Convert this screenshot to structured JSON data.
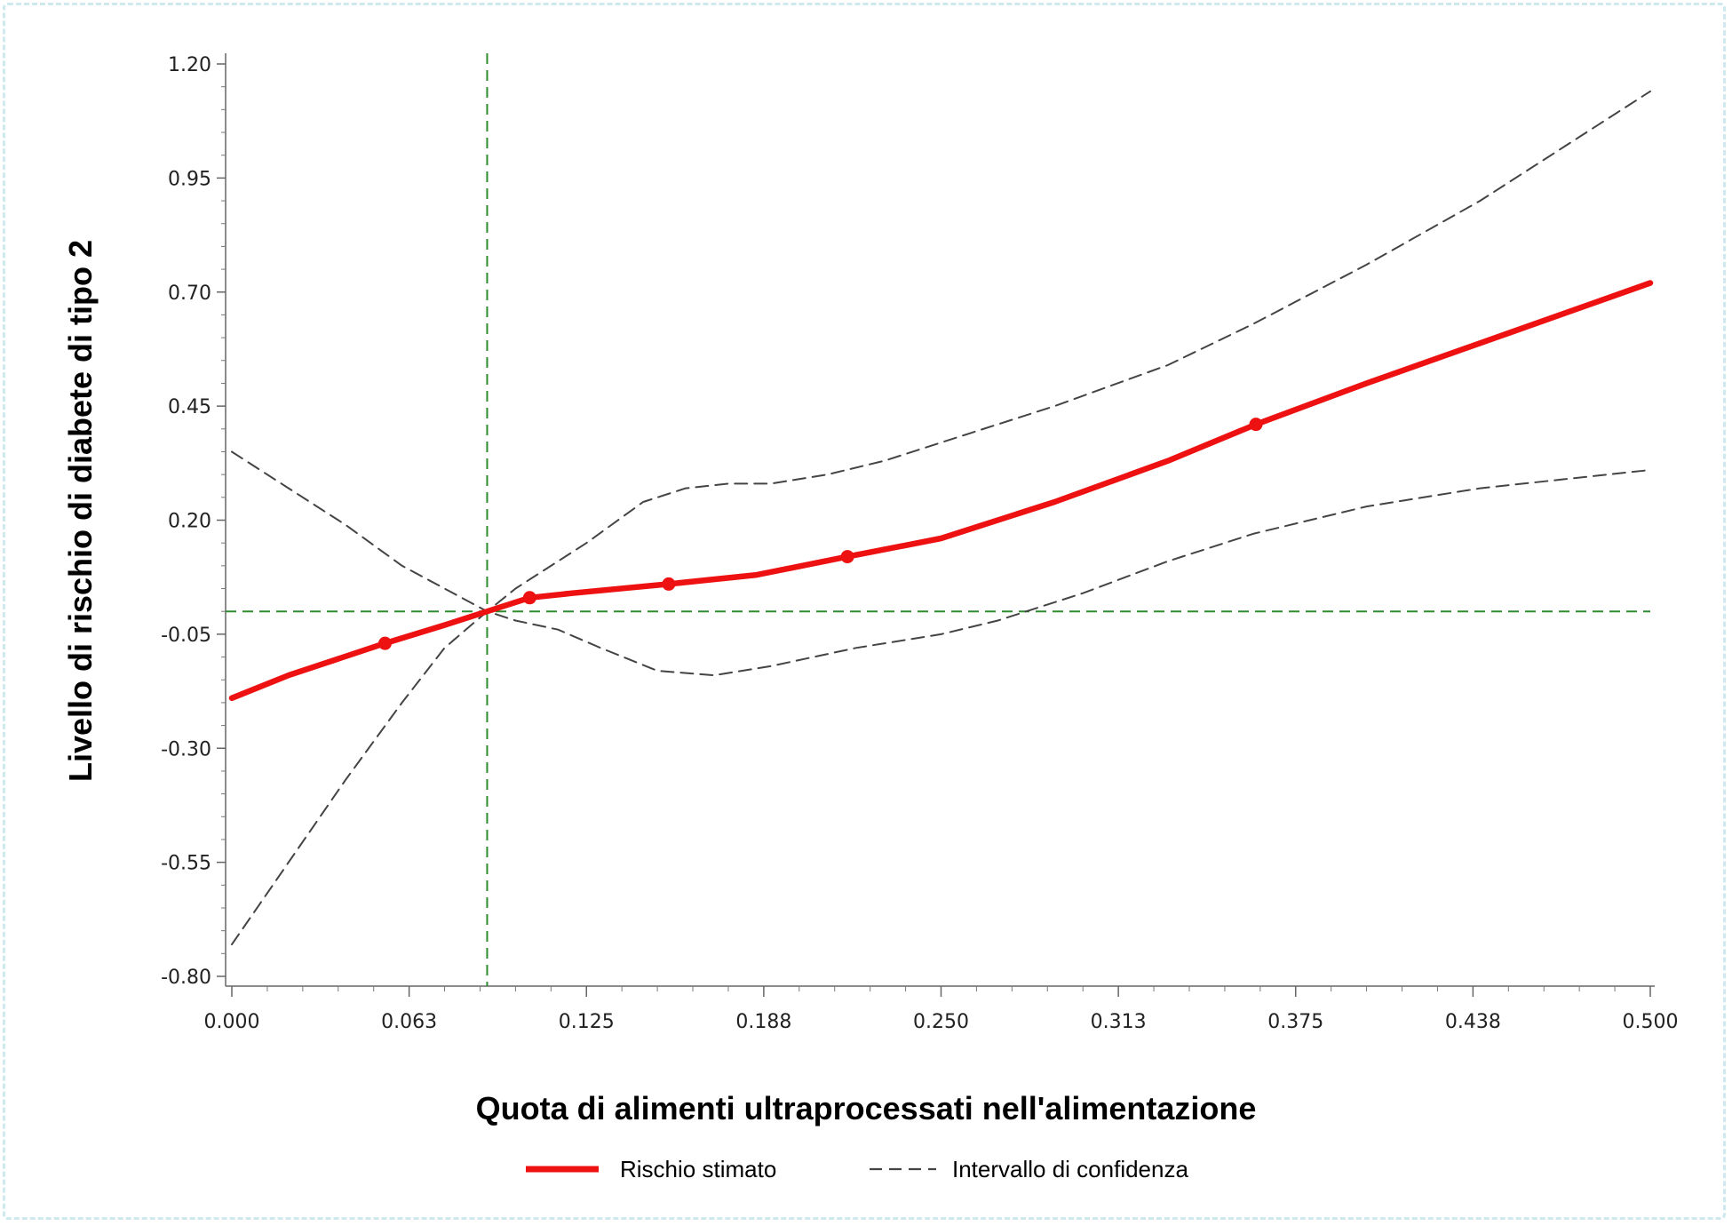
{
  "chart_data": {
    "type": "line",
    "title": "",
    "xlabel": "Quota di alimenti ultraprocessati nell'alimentazione",
    "ylabel": "Livello di rischio di diabete di tipo 2",
    "xlim": [
      0,
      0.5
    ],
    "ylim": [
      -0.8,
      1.2
    ],
    "x_ticks": [
      "0.000",
      "0.063",
      "0.125",
      "0.188",
      "0.250",
      "0.313",
      "0.375",
      "0.438",
      "0.500"
    ],
    "y_ticks": [
      "1.20",
      "0.95",
      "0.70",
      "0.45",
      "0.20",
      "-0.05",
      "-0.30",
      "-0.55",
      "-0.80"
    ],
    "reference_lines": {
      "x": 0.09,
      "y": 0.0,
      "color": "#2e8b2e"
    },
    "grid": false,
    "legend_position": "bottom",
    "series": [
      {
        "name": "Rischio stimato",
        "style": "solid",
        "color": "#ee1111",
        "x": [
          0.0,
          0.02,
          0.054,
          0.075,
          0.09,
          0.105,
          0.12,
          0.154,
          0.185,
          0.217,
          0.25,
          0.29,
          0.33,
          0.361,
          0.4,
          0.45,
          0.5
        ],
        "y": [
          -0.19,
          -0.14,
          -0.07,
          -0.03,
          0.0,
          0.03,
          0.04,
          0.06,
          0.08,
          0.12,
          0.16,
          0.24,
          0.33,
          0.41,
          0.5,
          0.61,
          0.72
        ],
        "markers_x": [
          0.054,
          0.105,
          0.154,
          0.217,
          0.361
        ],
        "markers_y": [
          -0.07,
          0.03,
          0.06,
          0.12,
          0.41
        ]
      },
      {
        "name": "Intervallo di confidenza",
        "style": "dashed",
        "color": "#444444",
        "x": [
          0.0,
          0.02,
          0.04,
          0.06,
          0.075,
          0.09,
          0.1,
          0.11,
          0.125,
          0.145,
          0.16,
          0.175,
          0.19,
          0.21,
          0.23,
          0.26,
          0.29,
          0.33,
          0.36,
          0.4,
          0.44,
          0.47,
          0.5
        ],
        "y": [
          0.35,
          0.27,
          0.19,
          0.1,
          0.05,
          0.0,
          0.05,
          0.09,
          0.15,
          0.24,
          0.27,
          0.28,
          0.28,
          0.3,
          0.33,
          0.39,
          0.45,
          0.54,
          0.63,
          0.76,
          0.9,
          1.02,
          1.14
        ]
      },
      {
        "name": "",
        "style": "dashed",
        "color": "#444444",
        "x": [
          0.0,
          0.02,
          0.04,
          0.06,
          0.075,
          0.09,
          0.1,
          0.115,
          0.13,
          0.15,
          0.17,
          0.19,
          0.22,
          0.25,
          0.27,
          0.3,
          0.33,
          0.36,
          0.4,
          0.44,
          0.47,
          0.5
        ],
        "y": [
          -0.73,
          -0.55,
          -0.37,
          -0.2,
          -0.08,
          0.0,
          -0.02,
          -0.04,
          -0.08,
          -0.13,
          -0.14,
          -0.12,
          -0.08,
          -0.05,
          -0.02,
          0.04,
          0.11,
          0.17,
          0.23,
          0.27,
          0.29,
          0.31
        ]
      }
    ]
  }
}
